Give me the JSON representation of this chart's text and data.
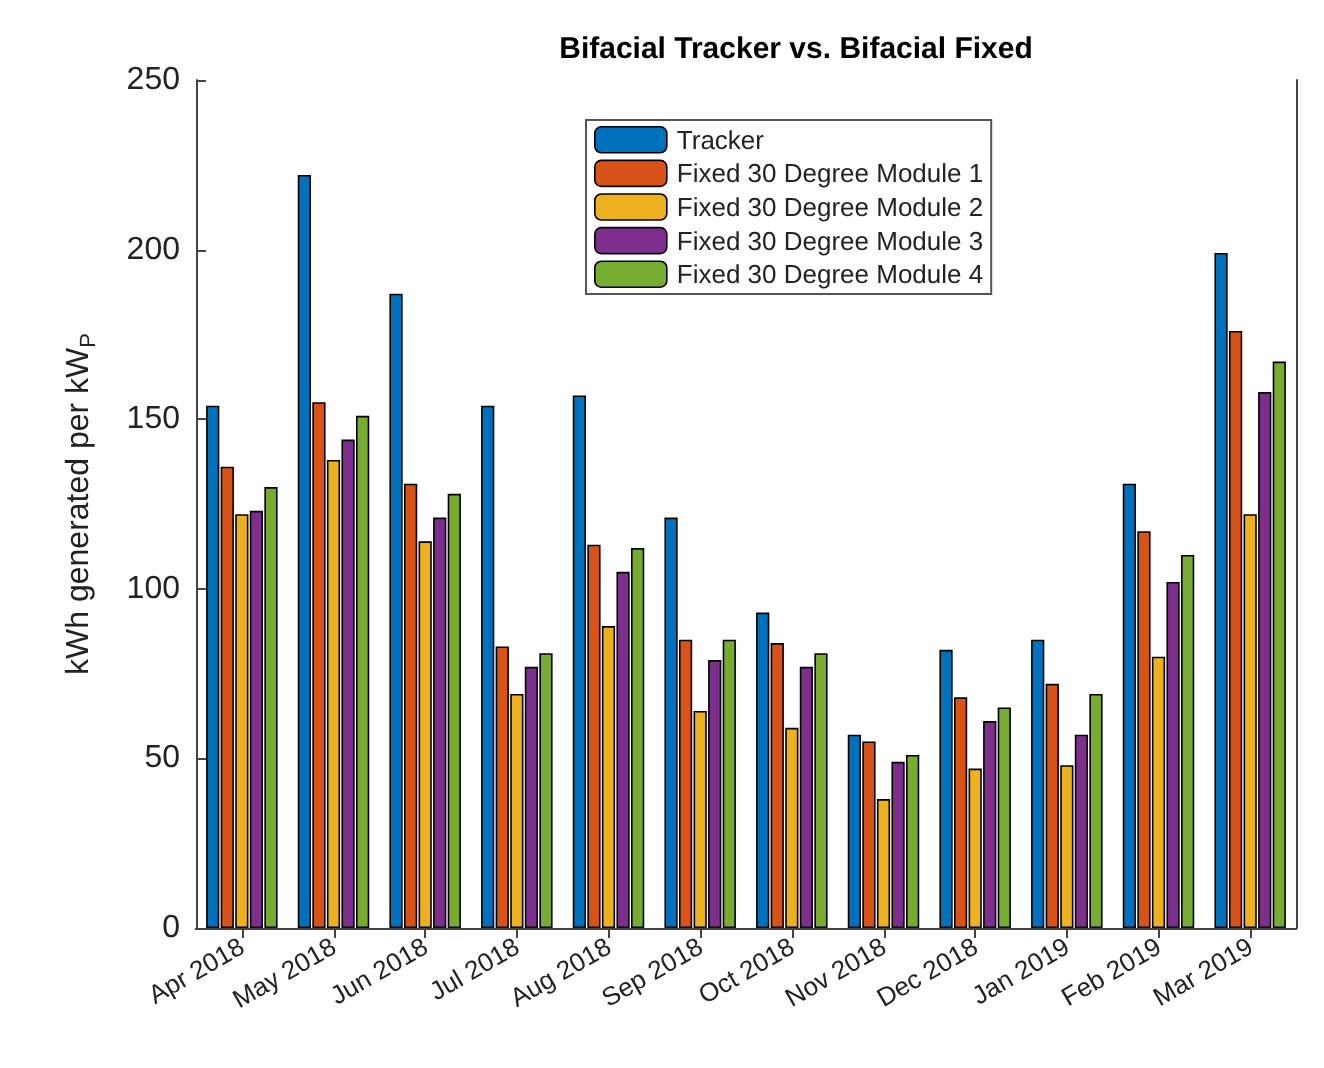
{
  "chart_data": {
    "type": "bar",
    "title": "Bifacial Tracker vs. Bifacial Fixed",
    "ylabel": "kWh generated per kW$_{P}$",
    "categories": [
      "Apr 2018",
      "May 2018",
      "Jun 2018",
      "Jul 2018",
      "Aug 2018",
      "Sep 2018",
      "Oct 2018",
      "Nov 2018",
      "Dec 2018",
      "Jan 2019",
      "Feb 2019",
      "Mar 2019"
    ],
    "series": [
      {
        "name": "Tracker",
        "color": "#0072bd",
        "values": [
          154,
          222,
          187,
          154,
          157,
          121,
          93,
          57,
          82,
          85,
          131,
          199
        ]
      },
      {
        "name": "Fixed 30 Degree Module 1",
        "color": "#d95319",
        "values": [
          136,
          155,
          131,
          83,
          113,
          85,
          84,
          55,
          68,
          72,
          117,
          176
        ]
      },
      {
        "name": "Fixed 30 Degree Module 2",
        "color": "#edb120",
        "values": [
          122,
          138,
          114,
          69,
          89,
          64,
          59,
          38,
          47,
          48,
          80,
          122
        ]
      },
      {
        "name": "Fixed 30 Degree Module 3",
        "color": "#7e2f8e",
        "values": [
          123,
          144,
          121,
          77,
          105,
          79,
          77,
          49,
          61,
          57,
          102,
          158
        ]
      },
      {
        "name": "Fixed 30 Degree Module 4",
        "color": "#77ac30",
        "values": [
          130,
          151,
          128,
          81,
          112,
          85,
          81,
          51,
          65,
          69,
          110,
          167
        ]
      }
    ],
    "ylim": [
      0,
      250
    ],
    "yticks": [
      0,
      50,
      100,
      150,
      200,
      250
    ],
    "grid": false,
    "legend": "top"
  }
}
